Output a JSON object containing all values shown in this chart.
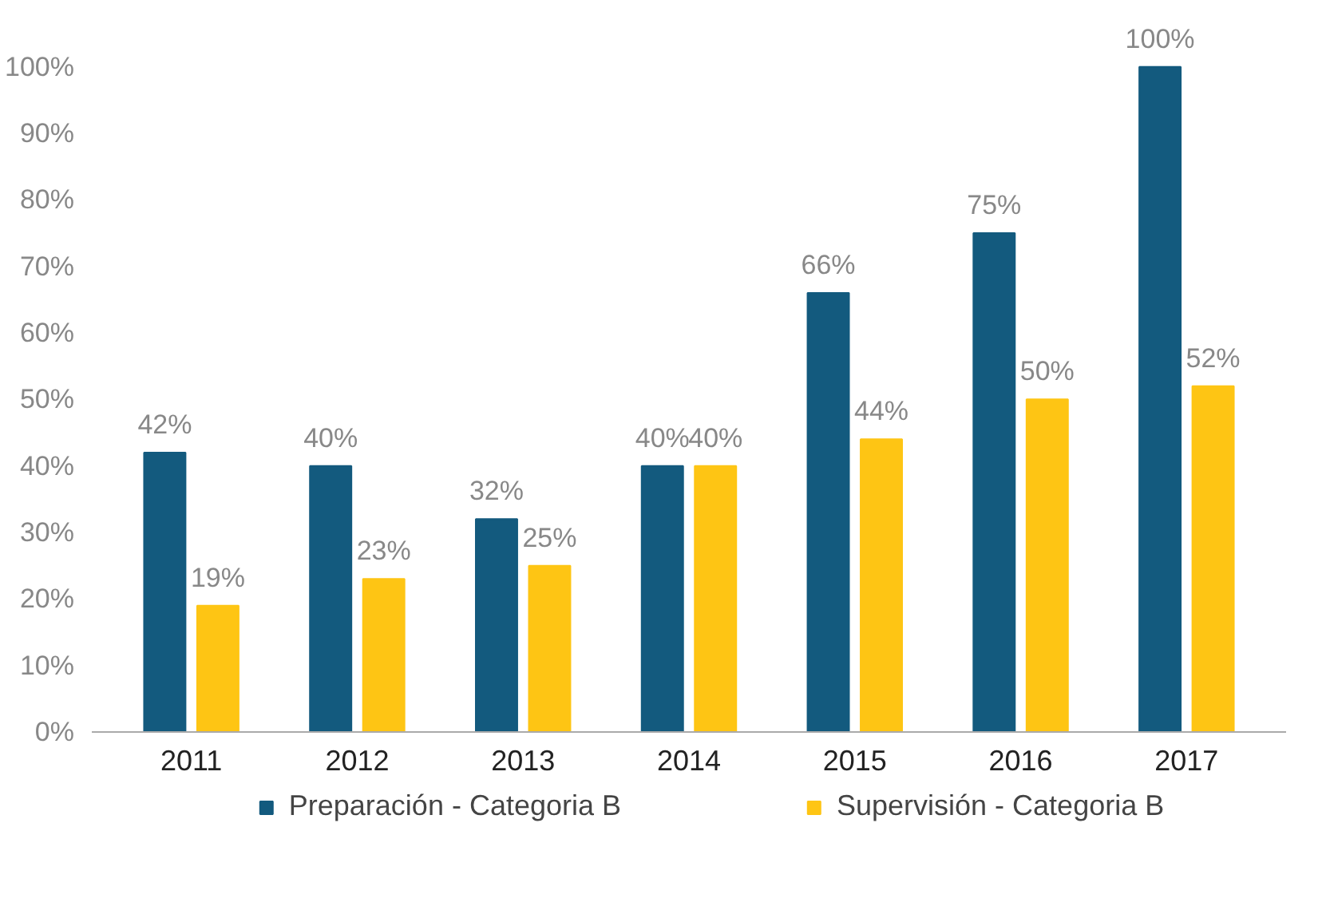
{
  "chart_data": {
    "type": "bar",
    "categories": [
      "2011",
      "2012",
      "2013",
      "2014",
      "2015",
      "2016",
      "2017"
    ],
    "series": [
      {
        "name": "Preparación - Categoria B",
        "color": "#135a7e",
        "values": [
          42,
          40,
          32,
          40,
          66,
          75,
          100
        ],
        "value_labels": [
          "42%",
          "40%",
          "32%",
          "40%",
          "66%",
          "75%",
          "100%"
        ]
      },
      {
        "name": "Supervisión - Categoria B",
        "color": "#fec514",
        "values": [
          19,
          23,
          25,
          40,
          44,
          50,
          52
        ],
        "value_labels": [
          "19%",
          "23%",
          "25%",
          "40%",
          "44%",
          "50%",
          "52%"
        ]
      }
    ],
    "ylim": [
      0,
      100
    ],
    "yticks": [
      {
        "value": 0,
        "label": "0%"
      },
      {
        "value": 10,
        "label": "10%"
      },
      {
        "value": 20,
        "label": "20%"
      },
      {
        "value": 30,
        "label": "30%"
      },
      {
        "value": 40,
        "label": "40%"
      },
      {
        "value": 50,
        "label": "50%"
      },
      {
        "value": 60,
        "label": "60%"
      },
      {
        "value": 70,
        "label": "70%"
      },
      {
        "value": 80,
        "label": "80%"
      },
      {
        "value": 90,
        "label": "90%"
      },
      {
        "value": 100,
        "label": "100%"
      }
    ],
    "grid": false,
    "legend": "bottom"
  }
}
